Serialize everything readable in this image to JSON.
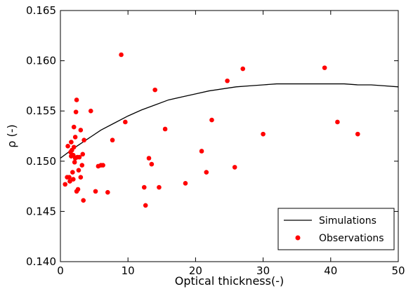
{
  "chart_data": {
    "type": "scatter",
    "xlabel": "Optical thickness(-)",
    "ylabel": "ρ (-)",
    "xlim": [
      0,
      50
    ],
    "ylim": [
      0.14,
      0.165
    ],
    "x_ticks": [
      0,
      10,
      20,
      30,
      40,
      50
    ],
    "y_ticks": [
      0.14,
      0.145,
      0.15,
      0.155,
      0.16,
      0.165
    ],
    "x_tick_labels": [
      "0",
      "10",
      "20",
      "30",
      "40",
      "50"
    ],
    "y_tick_labels": [
      "0.140",
      "0.145",
      "0.150",
      "0.155",
      "0.160",
      "0.165"
    ],
    "grid": false,
    "legend_position": "bottom-right",
    "series": [
      {
        "name": "Simulations",
        "kind": "line",
        "color": "#000000",
        "x": [
          0,
          2,
          4,
          6,
          8,
          10,
          12,
          14,
          16,
          18,
          20,
          22,
          24,
          26,
          28,
          30,
          32,
          34,
          36,
          38,
          40,
          42,
          44,
          46,
          48,
          50
        ],
        "y": [
          0.1503,
          0.1513,
          0.1522,
          0.1531,
          0.1538,
          0.1545,
          0.1551,
          0.1556,
          0.1561,
          0.1564,
          0.1567,
          0.157,
          0.1572,
          0.1574,
          0.1575,
          0.1576,
          0.1577,
          0.1577,
          0.1577,
          0.1577,
          0.1577,
          0.1577,
          0.1576,
          0.1576,
          0.1575,
          0.1574
        ]
      },
      {
        "name": "Observations",
        "kind": "scatter",
        "color": "#ff0000",
        "points": [
          [
            0.7,
            0.1477
          ],
          [
            1.0,
            0.1484
          ],
          [
            1.1,
            0.1515
          ],
          [
            1.3,
            0.1484
          ],
          [
            1.4,
            0.148
          ],
          [
            1.5,
            0.1509
          ],
          [
            1.6,
            0.1505
          ],
          [
            1.6,
            0.1519
          ],
          [
            1.7,
            0.1511
          ],
          [
            1.8,
            0.1489
          ],
          [
            1.9,
            0.1482
          ],
          [
            1.9,
            0.1506
          ],
          [
            2.0,
            0.1534
          ],
          [
            2.0,
            0.1514
          ],
          [
            2.1,
            0.1499
          ],
          [
            2.2,
            0.1524
          ],
          [
            2.2,
            0.1503
          ],
          [
            2.3,
            0.1549
          ],
          [
            2.4,
            0.1561
          ],
          [
            2.4,
            0.147
          ],
          [
            2.5,
            0.1504
          ],
          [
            2.6,
            0.1472
          ],
          [
            2.7,
            0.1491
          ],
          [
            2.8,
            0.1504
          ],
          [
            3.0,
            0.1484
          ],
          [
            3.0,
            0.1531
          ],
          [
            3.2,
            0.1496
          ],
          [
            3.3,
            0.1507
          ],
          [
            3.4,
            0.1461
          ],
          [
            3.5,
            0.1521
          ],
          [
            4.5,
            0.155
          ],
          [
            5.2,
            0.147
          ],
          [
            5.6,
            0.1495
          ],
          [
            6.0,
            0.1496
          ],
          [
            6.3,
            0.1496
          ],
          [
            7.0,
            0.1469
          ],
          [
            7.7,
            0.1521
          ],
          [
            9.0,
            0.1606
          ],
          [
            9.6,
            0.1539
          ],
          [
            12.4,
            0.1474
          ],
          [
            12.6,
            0.1456
          ],
          [
            13.1,
            0.1503
          ],
          [
            13.5,
            0.1497
          ],
          [
            14.0,
            0.1571
          ],
          [
            14.6,
            0.1474
          ],
          [
            15.5,
            0.1532
          ],
          [
            18.5,
            0.1478
          ],
          [
            20.9,
            0.151
          ],
          [
            21.6,
            0.1489
          ],
          [
            22.4,
            0.1541
          ],
          [
            24.7,
            0.158
          ],
          [
            25.8,
            0.1494
          ],
          [
            27.0,
            0.1592
          ],
          [
            30.0,
            0.1527
          ],
          [
            39.1,
            0.1593
          ],
          [
            41.0,
            0.1539
          ],
          [
            44.0,
            0.1527
          ]
        ]
      }
    ]
  }
}
